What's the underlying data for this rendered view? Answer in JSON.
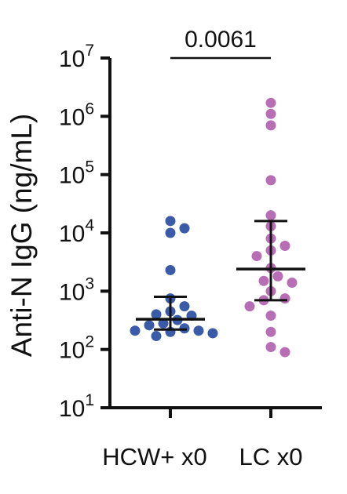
{
  "chart_data": {
    "type": "scatter",
    "ylabel": "Anti-N IgG (ng/mL)",
    "yscale": "log10",
    "ylim": [
      10,
      10000000
    ],
    "y_tick_exponents": [
      "1",
      "2",
      "3",
      "4",
      "5",
      "6",
      "7"
    ],
    "y_tick_base": "10",
    "categories": [
      "HCW+ x0",
      "LC x0"
    ],
    "significance": {
      "label": "0.0061",
      "between": [
        "HCW+ x0",
        "LC x0"
      ]
    },
    "series": [
      {
        "name": "HCW+ x0",
        "color": "#3A5BA9",
        "values": [
          16000,
          12000,
          10000,
          2300,
          750,
          550,
          450,
          400,
          380,
          320,
          280,
          260,
          230,
          210,
          200,
          210,
          170,
          190
        ],
        "median": 330,
        "error_low": 220,
        "error_high": 800
      },
      {
        "name": "LC x0",
        "color": "#B86EB5",
        "values": [
          1700000,
          1100000,
          700000,
          80000,
          20000,
          13000,
          8000,
          6000,
          5000,
          4000,
          2500,
          1800,
          1500,
          1400,
          1000,
          750,
          700,
          550,
          380,
          200,
          110,
          90
        ],
        "median": 2400,
        "error_low": 700,
        "error_high": 16000
      }
    ]
  }
}
